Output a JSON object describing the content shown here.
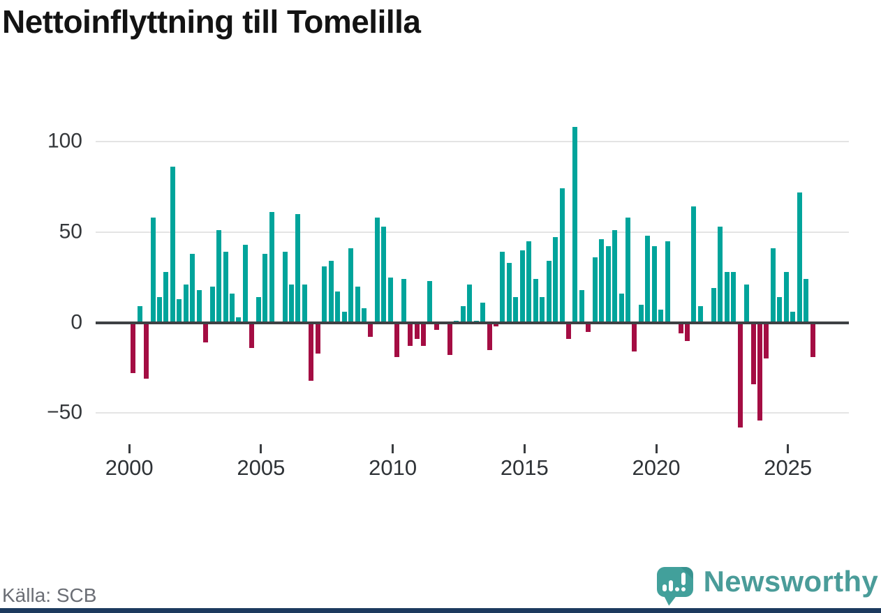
{
  "title": "Nettoinflyttning till Tomelilla",
  "source": "Källa: SCB",
  "branding": {
    "name": "Newsworthy",
    "icon": "newsworthy-speech-bubble-bar-chart-icon"
  },
  "colors": {
    "positive_bar": "#00A49B",
    "negative_bar": "#A40D43",
    "zero_axis": "#3E4144",
    "gridline": "#E4E4E4",
    "title_text": "#131313",
    "tick_text": "#35383B",
    "source_text": "#6B6E75",
    "brand_teal": "#4A9C99",
    "footer_strip": "#1C3A5E"
  },
  "chart_data": {
    "type": "bar",
    "title": "Nettoinflyttning till Tomelilla",
    "frequency": "quarterly",
    "start_period": "2000 Q1",
    "end_period": "2025 Q4",
    "values": [
      -28,
      9,
      -31,
      58,
      14,
      28,
      86,
      13,
      21,
      38,
      18,
      -11,
      20,
      51,
      39,
      16,
      3,
      43,
      -14,
      14,
      38,
      61,
      0,
      39,
      21,
      60,
      21,
      -32,
      -17,
      31,
      34,
      17,
      6,
      41,
      20,
      8,
      -8,
      58,
      53,
      25,
      -19,
      24,
      -13,
      -9,
      -13,
      23,
      -4,
      0,
      -18,
      1,
      9,
      21,
      1,
      11,
      -15,
      -2,
      39,
      33,
      14,
      40,
      45,
      24,
      14,
      34,
      47,
      74,
      -9,
      108,
      18,
      -5,
      36,
      46,
      42,
      51,
      16,
      58,
      -16,
      10,
      48,
      42,
      7,
      45,
      0,
      -6,
      -10,
      64,
      9,
      0,
      19,
      53,
      28,
      28,
      -58,
      21,
      -34,
      -54,
      -20,
      41,
      14,
      28,
      6,
      72,
      24,
      -19
    ],
    "x_tick_labels": [
      "2000",
      "2005",
      "2010",
      "2015",
      "2020",
      "2025"
    ],
    "y_ticks": [
      {
        "value": 100,
        "label": "100"
      },
      {
        "value": 50,
        "label": "50"
      },
      {
        "value": 0,
        "label": "0"
      },
      {
        "value": -50,
        "label": "−50"
      }
    ],
    "y_gridlines": [
      100,
      50,
      -50
    ],
    "ylim": [
      -70,
      115
    ],
    "grid": "horizontal",
    "legend": "none"
  }
}
